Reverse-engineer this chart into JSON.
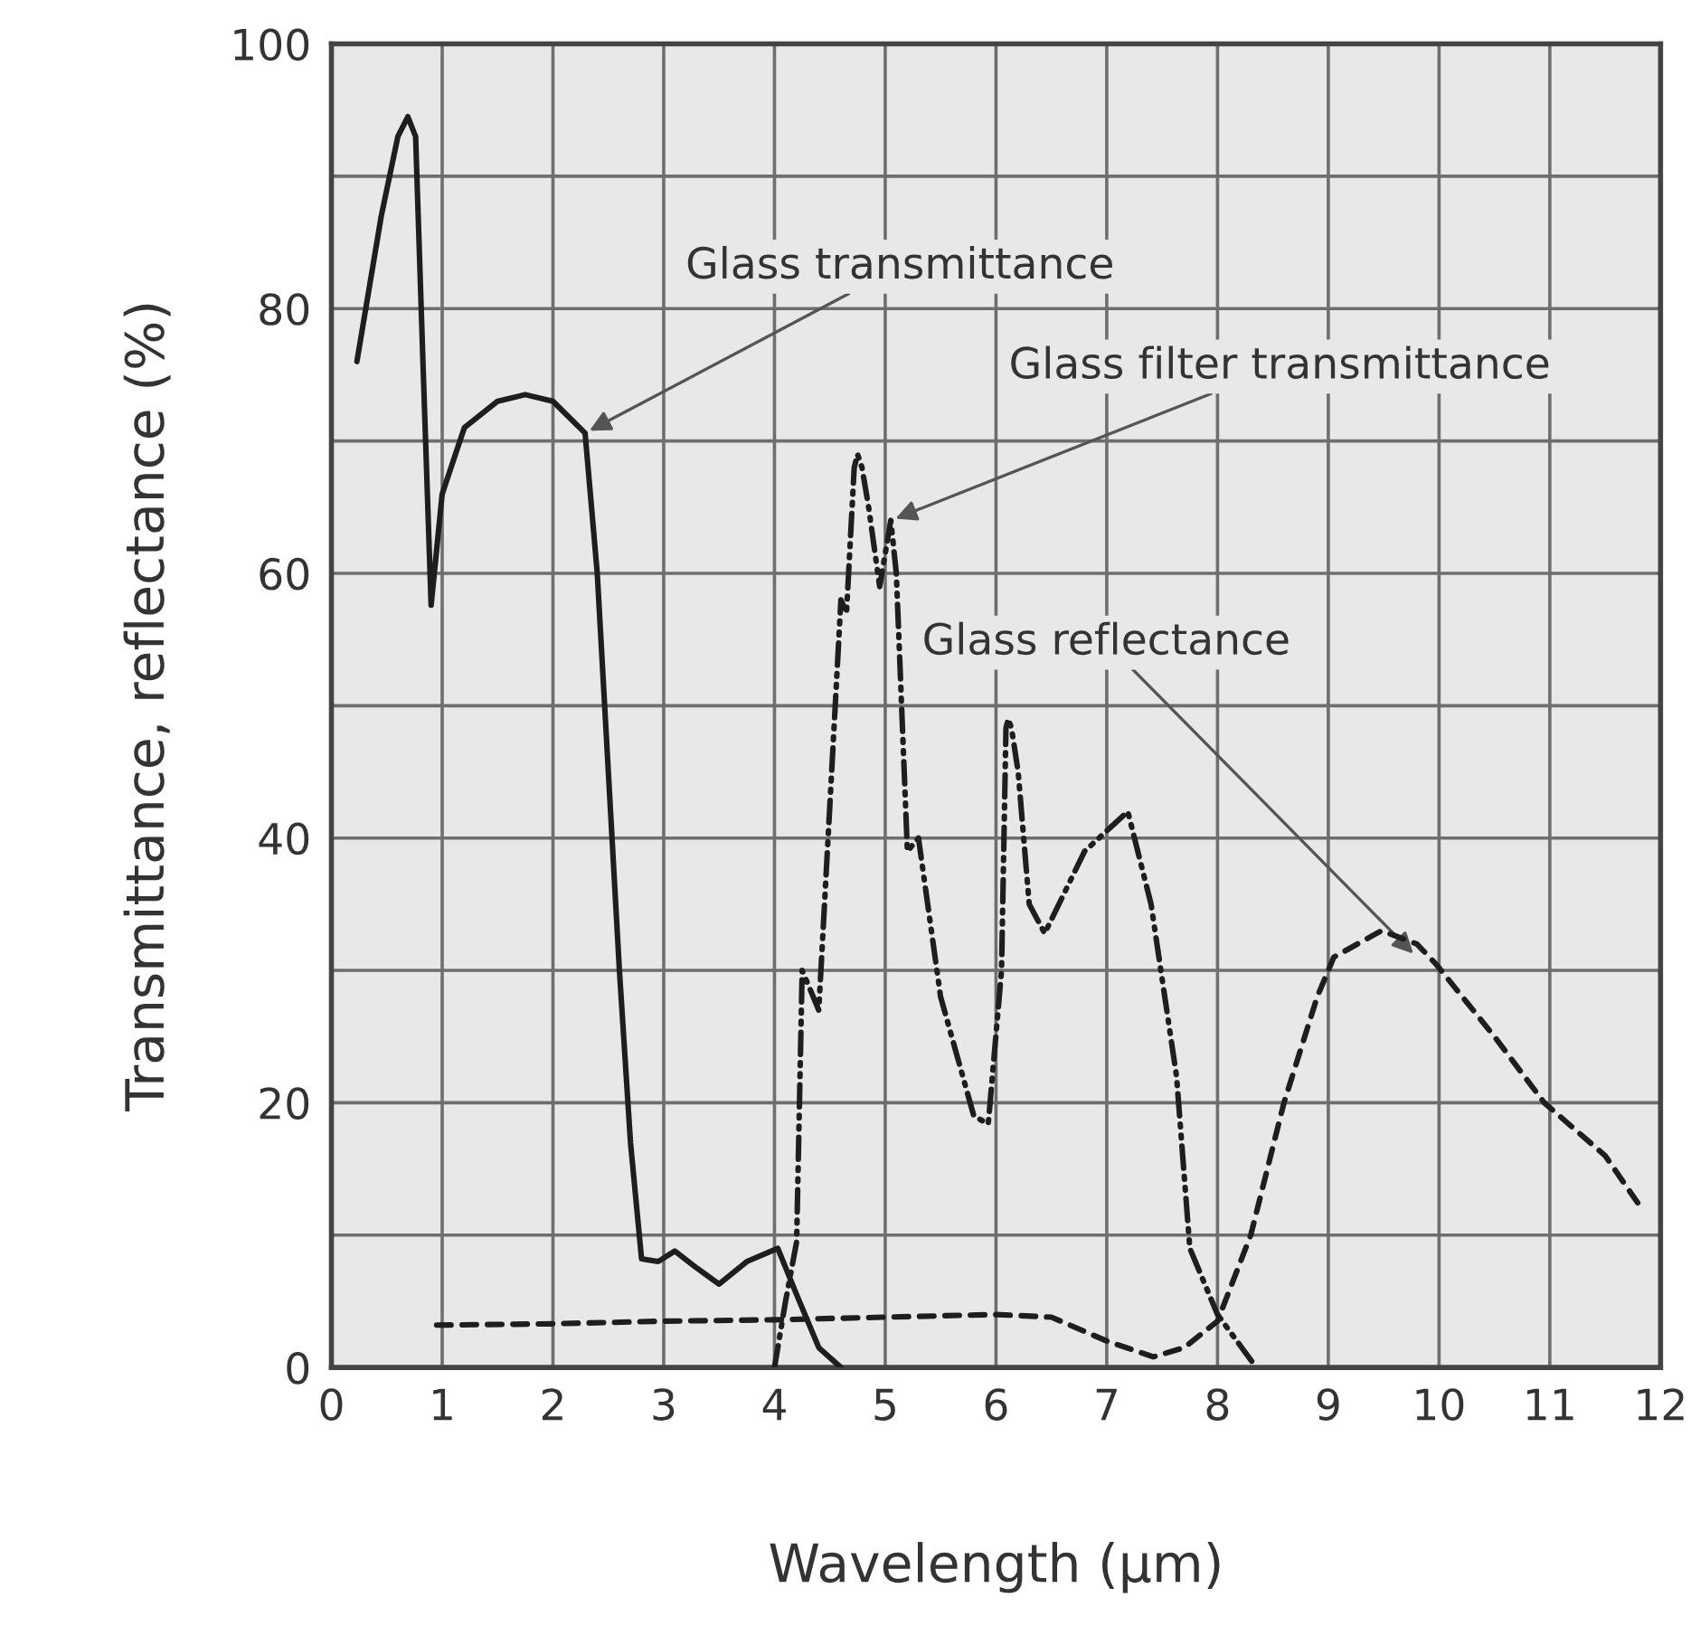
{
  "chart_data": {
    "type": "line",
    "xlabel": "Wavelength (µm)",
    "ylabel": "Transmittance, reflectance (%)",
    "xlim": [
      0,
      12
    ],
    "xticks": [
      0,
      1,
      2,
      3,
      4,
      5,
      6,
      7,
      8,
      9,
      10,
      11,
      12
    ],
    "ylim": [
      0,
      100
    ],
    "yticks": [
      0,
      {
        "value": 10,
        "label": null
      },
      20,
      {
        "value": 30,
        "label": null
      },
      40,
      {
        "value": 50,
        "label": null
      },
      60,
      {
        "value": 70,
        "label": null
      },
      80,
      {
        "value": 90,
        "label": null
      },
      100
    ],
    "grid": true,
    "marker": "none",
    "series": [
      {
        "color": "#1e1e1e",
        "line_style": "solid",
        "x": [
          0.23,
          0.45,
          0.6,
          0.69,
          0.76,
          0.83,
          0.9,
          1.0,
          1.2,
          1.5,
          1.75,
          2.0,
          2.29,
          2.4,
          2.5,
          2.6,
          2.7,
          2.8,
          2.95,
          3.1,
          3.3,
          3.5,
          3.75,
          4.03,
          4.2,
          4.4,
          4.6
        ],
        "values": [
          76,
          87,
          93,
          94.5,
          93,
          75,
          57.6,
          66,
          71,
          73,
          73.5,
          73,
          70.6,
          60,
          45,
          30,
          17,
          8.2,
          8,
          8.8,
          7.5,
          6.3,
          8,
          9,
          5.5,
          1.5,
          0
        ]
      },
      {
        "color": "#1e1e1e",
        "line_style": "dashdot",
        "x": [
          4.0,
          4.1,
          4.2,
          4.25,
          4.4,
          4.6,
          4.65,
          4.72,
          4.75,
          4.79,
          4.85,
          4.95,
          5.05,
          5.1,
          5.2,
          5.3,
          5.5,
          5.8,
          5.93,
          6.05,
          6.09,
          6.11,
          6.14,
          6.2,
          6.3,
          6.44,
          6.8,
          7.19,
          7.4,
          7.63,
          7.75,
          8.0,
          8.35
        ],
        "values": [
          0,
          5,
          9.5,
          30,
          27,
          58,
          57,
          68,
          69,
          68,
          65,
          59,
          64,
          60,
          39,
          40,
          28,
          19,
          18.4,
          30,
          48.3,
          49,
          48.3,
          45,
          35,
          32.8,
          39,
          42,
          35,
          22,
          9,
          4,
          0
        ]
      },
      {
        "color": "#1e1e1e",
        "line_style": "dashed",
        "x": [
          0.95,
          2,
          3,
          4,
          5,
          6,
          6.5,
          7,
          7.42,
          7.7,
          8.0,
          8.3,
          8.6,
          8.9,
          9.05,
          9.48,
          9.8,
          9.97,
          10.5,
          10.95,
          11.5,
          11.83
        ],
        "values": [
          3.2,
          3.3,
          3.5,
          3.6,
          3.8,
          4,
          3.8,
          2,
          0.8,
          1.5,
          3.5,
          10,
          20,
          28,
          31,
          33,
          32,
          30.5,
          25,
          20,
          16,
          12
        ]
      }
    ],
    "annotations": [
      {
        "text": "Glass transmittance",
        "x": 2.29,
        "y": 70.6
      },
      {
        "text": "Glass filter transmittance",
        "x": 5.05,
        "y": 64
      },
      {
        "text": "Glass reflectance",
        "x": 9.8,
        "y": 31
      }
    ]
  }
}
